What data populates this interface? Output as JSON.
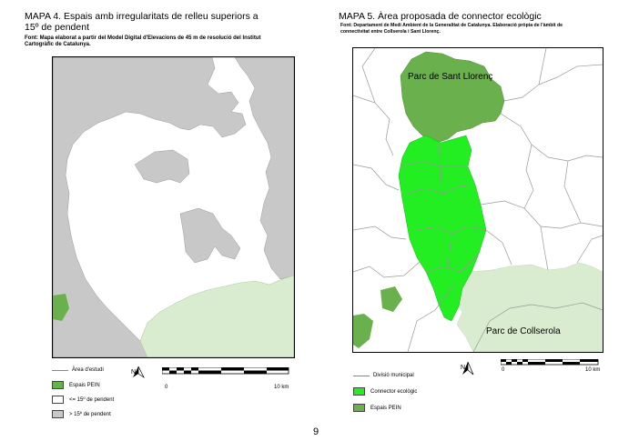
{
  "map4": {
    "title_line1": "MAPA 4. Espais amb irregularitats de relleu superiors a",
    "title_line2": "15º de pendent",
    "source_line1": "Font: Mapa elaborat a partir del Model Digital d'Elevacions de 45 m de resolució del Institut",
    "source_line2": "Cartogràfic de Catalunya.",
    "legend": {
      "area": "Àrea d'estudi",
      "pein": "Espais PEIN",
      "low": "<= 15º de pendent",
      "high": "> 15º de pendent"
    },
    "scale": {
      "min": "0",
      "max": "10 km"
    },
    "north_letter": "N"
  },
  "map5": {
    "title": "MAPA 5. Àrea proposada de connector ecològic",
    "source_line1": "Font: Departament de Medi Ambient de la Generalitat de Catalunya. Elaboració pròpia de l'àmbit de",
    "source_line2": "connectivitat entre Collserola i Sant Llorenç.",
    "label_north": "Parc de Sant Llorenç",
    "label_south": "Parc de Collserola",
    "legend": {
      "division": "Divisió municipal",
      "connector": "Connector ecològic",
      "pein": "Espais PEIN"
    },
    "scale": {
      "min": "0",
      "max": "10 km"
    },
    "north_letter": "N"
  },
  "page_number": "9",
  "colors": {
    "slope_high": "#c8c8c8",
    "pein_dark": "#6ab04c",
    "pein_light": "#d9ecd0",
    "connector": "#22ee22",
    "division_line": "#999999"
  }
}
